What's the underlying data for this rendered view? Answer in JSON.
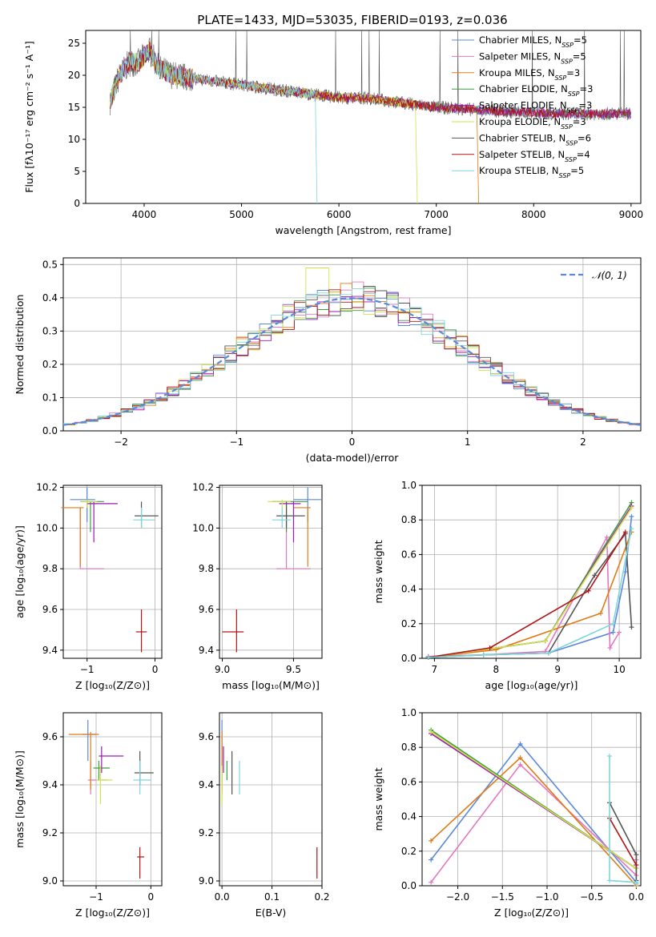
{
  "figure": {
    "title": "PLATE=1433, MJD=53035, FIBERID=0193, z=0.036"
  },
  "models": [
    {
      "name": "Chabrier MILES",
      "nssp": "5",
      "color": "#5b88d9"
    },
    {
      "name": "Salpeter MILES",
      "nssp": "5",
      "color": "#e377c2"
    },
    {
      "name": "Kroupa MILES",
      "nssp": "3",
      "color": "#e07b14"
    },
    {
      "name": "Chabrier ELODIE",
      "nssp": "3",
      "color": "#3e9e3e"
    },
    {
      "name": "Salpeter ELODIE",
      "nssp": "3",
      "color": "#9b1ab5"
    },
    {
      "name": "Kroupa ELODIE",
      "nssp": "3",
      "color": "#cfe34a"
    },
    {
      "name": "Chabrier STELIB",
      "nssp": "6",
      "color": "#555555"
    },
    {
      "name": "Salpeter STELIB",
      "nssp": "4",
      "color": "#b01414"
    },
    {
      "name": "Kroupa STELIB",
      "nssp": "5",
      "color": "#7fd6dc"
    }
  ],
  "chart_data": [
    {
      "id": "spectrum",
      "type": "line",
      "xlabel": "wavelength [Angstrom, rest frame]",
      "ylabel": "Flux [fλ10⁻¹⁷ erg cm⁻² s⁻¹ A⁻¹]",
      "xlim": [
        3400,
        9100
      ],
      "ylim": [
        0,
        27
      ],
      "xticks": [
        "4000",
        "5000",
        "6000",
        "7000",
        "8000",
        "9000"
      ],
      "yticks": [
        "0",
        "5",
        "10",
        "15",
        "20",
        "25"
      ],
      "x": [
        3650,
        3750,
        3850,
        3950,
        4050,
        4150,
        4300,
        4500,
        4750,
        5000,
        5250,
        5500,
        5750,
        6000,
        6250,
        6500,
        6750,
        7000,
        7250,
        7500,
        7750,
        8000,
        8250,
        8500,
        8800
      ],
      "y": [
        16,
        20,
        22,
        22,
        24,
        21,
        20,
        19.5,
        19,
        18.5,
        18,
        17.5,
        17,
        16.5,
        16.5,
        16,
        15.5,
        15,
        14.8,
        14.5,
        14.3,
        14.2,
        14,
        14,
        14
      ],
      "model_range": [
        [
          3650,
          9000
        ],
        [
          3650,
          9000
        ],
        [
          3650,
          7420
        ],
        [
          3650,
          9000
        ],
        [
          3650,
          9000
        ],
        [
          3650,
          6790
        ],
        [
          3650,
          9000
        ],
        [
          3650,
          9000
        ],
        [
          3650,
          5760
        ]
      ],
      "legend": "upper right"
    },
    {
      "id": "residuals",
      "type": "line",
      "xlabel": "(data-model)/error",
      "ylabel": "Normed distribution",
      "xlim": [
        -2.5,
        2.5
      ],
      "ylim": [
        0,
        0.52
      ],
      "xticks": [
        "−2",
        "−1",
        "0",
        "1",
        "2"
      ],
      "yticks": [
        "0.0",
        "0.1",
        "0.2",
        "0.3",
        "0.4",
        "0.5"
      ],
      "reference": "𝒩(0, 1)",
      "bin_width": 0.1,
      "legend": "upper right"
    },
    {
      "id": "age-vs-Z",
      "type": "scatter",
      "xlabel": "Z [log₁₀(Z/Z⊙)]",
      "ylabel": "age  [log₁₀(age/yr)]",
      "xlim": [
        -1.35,
        0.1
      ],
      "ylim": [
        9.36,
        10.21
      ],
      "xticks": [
        "−1",
        "0"
      ],
      "yticks": [
        "9.4",
        "9.6",
        "9.8",
        "10.0",
        "10.2"
      ],
      "points": [
        {
          "x": -1.0,
          "y": 10.14,
          "xe": [
            -1.25,
            -0.88
          ],
          "ye": [
            10.03,
            10.2
          ]
        },
        {
          "x": -1.1,
          "y": 9.8,
          "xe": [
            -1.1,
            -0.75
          ],
          "ye": [
            9.8,
            10.1
          ]
        },
        {
          "x": -1.1,
          "y": 10.1,
          "xe": [
            -1.38,
            -1.05
          ],
          "ye": [
            9.81,
            10.1
          ]
        },
        {
          "x": -0.95,
          "y": 10.13,
          "xe": [
            -1.1,
            -0.75
          ],
          "ye": [
            9.98,
            10.13
          ]
        },
        {
          "x": -0.9,
          "y": 10.12,
          "xe": [
            -1.0,
            -0.55
          ],
          "ye": [
            9.93,
            10.13
          ]
        },
        {
          "x": -1.0,
          "y": 10.13,
          "xe": [
            -1.1,
            -0.85
          ],
          "ye": [
            10.1,
            10.14
          ]
        },
        {
          "x": -0.2,
          "y": 10.06,
          "xe": [
            -0.3,
            0.05
          ],
          "ye": [
            10.0,
            10.13
          ]
        },
        {
          "x": -0.2,
          "y": 9.49,
          "xe": [
            -0.28,
            -0.12
          ],
          "ye": [
            9.39,
            9.6
          ]
        },
        {
          "x": -0.2,
          "y": 10.04,
          "xe": [
            -0.32,
            0.0
          ],
          "ye": [
            10.0,
            10.1
          ]
        }
      ]
    },
    {
      "id": "age-vs-mass",
      "type": "scatter",
      "xlabel": "mass [log₁₀(M/M⊙)]",
      "ylabel": "",
      "xlim": [
        8.98,
        9.7
      ],
      "ylim": [
        9.36,
        10.21
      ],
      "xticks": [
        "9.0",
        "9.5"
      ],
      "yticks": [
        "9.4",
        "9.6",
        "9.8",
        "10.0",
        "10.2"
      ],
      "points": [
        {
          "x": 9.6,
          "y": 10.14,
          "xe": [
            9.5,
            9.7
          ],
          "ye": [
            10.03,
            10.2
          ]
        },
        {
          "x": 9.45,
          "y": 9.8,
          "xe": [
            9.38,
            9.62
          ],
          "ye": [
            9.8,
            10.1
          ]
        },
        {
          "x": 9.6,
          "y": 10.1,
          "xe": [
            9.5,
            9.62
          ],
          "ye": [
            9.81,
            10.1
          ]
        },
        {
          "x": 9.45,
          "y": 10.13,
          "xe": [
            9.35,
            9.6
          ],
          "ye": [
            9.98,
            10.13
          ]
        },
        {
          "x": 9.5,
          "y": 10.12,
          "xe": [
            9.4,
            9.55
          ],
          "ye": [
            9.93,
            10.13
          ]
        },
        {
          "x": 9.42,
          "y": 10.13,
          "xe": [
            9.32,
            9.48
          ],
          "ye": [
            10.1,
            10.14
          ]
        },
        {
          "x": 9.45,
          "y": 10.06,
          "xe": [
            9.38,
            9.58
          ],
          "ye": [
            10.0,
            10.13
          ]
        },
        {
          "x": 9.1,
          "y": 9.49,
          "xe": [
            9.0,
            9.15
          ],
          "ye": [
            9.39,
            9.6
          ]
        },
        {
          "x": 9.42,
          "y": 10.04,
          "xe": [
            9.35,
            9.48
          ],
          "ye": [
            10.0,
            10.1
          ]
        }
      ]
    },
    {
      "id": "massweight-vs-age",
      "type": "line",
      "xlabel": "age  [log₁₀(age/yr)]",
      "ylabel": "mass weight",
      "xlim": [
        6.8,
        10.35
      ],
      "ylim": [
        0,
        1
      ],
      "xticks": [
        "7",
        "8",
        "9",
        "10"
      ],
      "yticks": [
        "0.0",
        "0.2",
        "0.4",
        "0.6",
        "0.8",
        "1.0"
      ],
      "series": [
        {
          "x": [
            6.9,
            7.8,
            8.85,
            9.9,
            10.1,
            10.2
          ],
          "y": [
            0.01,
            0.02,
            0.03,
            0.15,
            0.5,
            0.82
          ]
        },
        {
          "x": [
            6.9,
            7.8,
            8.8,
            9.8,
            9.85,
            10.0
          ],
          "y": [
            0.01,
            0.02,
            0.04,
            0.7,
            0.06,
            0.15
          ]
        },
        {
          "x": [
            6.9,
            8.0,
            9.7,
            10.2
          ],
          "y": [
            0.005,
            0.05,
            0.26,
            0.73
          ]
        },
        {
          "x": [
            6.9,
            8.8,
            10.2
          ],
          "y": [
            0.005,
            0.1,
            0.9
          ]
        },
        {
          "x": [
            6.9,
            8.8,
            10.2
          ],
          "y": [
            0.005,
            0.1,
            0.88
          ]
        },
        {
          "x": [
            6.9,
            8.8,
            10.2
          ],
          "y": [
            0.005,
            0.1,
            0.87
          ]
        },
        {
          "x": [
            6.9,
            7.8,
            8.85,
            9.6,
            10.1,
            10.2
          ],
          "y": [
            0.005,
            0.02,
            0.03,
            0.48,
            0.72,
            0.18
          ]
        },
        {
          "x": [
            6.9,
            7.9,
            9.5,
            10.1
          ],
          "y": [
            0.005,
            0.06,
            0.39,
            0.73
          ]
        },
        {
          "x": [
            6.9,
            7.8,
            8.85,
            9.9,
            10.2
          ],
          "y": [
            0.005,
            0.02,
            0.03,
            0.2,
            0.75
          ]
        }
      ]
    },
    {
      "id": "mass-vs-Z",
      "type": "scatter",
      "xlabel": "Z [log₁₀(Z/Z⊙)]",
      "ylabel": "mass [log₁₀(M/M⊙)]",
      "xlim": [
        -1.6,
        0.2
      ],
      "ylim": [
        8.98,
        9.7
      ],
      "xticks": [
        "−1",
        "0"
      ],
      "yticks": [
        "9.0",
        "9.2",
        "9.4",
        "9.6"
      ],
      "points": [
        {
          "x": -1.15,
          "y": 9.61,
          "xe": [
            -1.25,
            -1.0
          ],
          "ye": [
            9.5,
            9.67
          ]
        },
        {
          "x": -1.1,
          "y": 9.42,
          "xe": [
            -1.15,
            -0.8
          ],
          "ye": [
            9.36,
            9.5
          ]
        },
        {
          "x": -1.1,
          "y": 9.61,
          "xe": [
            -1.5,
            -0.95
          ],
          "ye": [
            9.38,
            9.62
          ]
        },
        {
          "x": -0.95,
          "y": 9.47,
          "xe": [
            -1.05,
            -0.75
          ],
          "ye": [
            9.42,
            9.5
          ]
        },
        {
          "x": -0.9,
          "y": 9.52,
          "xe": [
            -0.95,
            -0.5
          ],
          "ye": [
            9.45,
            9.56
          ]
        },
        {
          "x": -0.92,
          "y": 9.42,
          "xe": [
            -1.0,
            -0.7
          ],
          "ye": [
            9.32,
            9.48
          ]
        },
        {
          "x": -0.2,
          "y": 9.45,
          "xe": [
            -0.3,
            0.05
          ],
          "ye": [
            9.4,
            9.54
          ]
        },
        {
          "x": -0.2,
          "y": 9.1,
          "xe": [
            -0.25,
            -0.12
          ],
          "ye": [
            9.01,
            9.14
          ]
        },
        {
          "x": -0.2,
          "y": 9.42,
          "xe": [
            -0.32,
            0.0
          ],
          "ye": [
            9.36,
            9.5
          ]
        }
      ]
    },
    {
      "id": "mass-vs-EBV",
      "type": "scatter",
      "xlabel": "E(B-V)",
      "ylabel": "",
      "xlim": [
        -0.005,
        0.2
      ],
      "ylim": [
        8.98,
        9.7
      ],
      "xticks": [
        "0.0",
        "0.1",
        "0.2"
      ],
      "yticks": [
        "9.0",
        "9.2",
        "9.4",
        "9.6"
      ],
      "points": [
        {
          "x": 0.0,
          "y": 9.61,
          "xe": [
            0.0,
            0.0
          ],
          "ye": [
            9.5,
            9.67
          ]
        },
        {
          "x": 0.0,
          "y": 9.42,
          "xe": [
            0.0,
            0.0
          ],
          "ye": [
            9.36,
            9.5
          ]
        },
        {
          "x": 0.0,
          "y": 9.61,
          "xe": [
            0.0,
            0.0
          ],
          "ye": [
            9.38,
            9.62
          ]
        },
        {
          "x": 0.01,
          "y": 9.47,
          "xe": [
            0.01,
            0.01
          ],
          "ye": [
            9.42,
            9.5
          ]
        },
        {
          "x": 0.003,
          "y": 9.52,
          "xe": [
            0.003,
            0.003
          ],
          "ye": [
            9.45,
            9.56
          ]
        },
        {
          "x": 0.0,
          "y": 9.42,
          "xe": [
            0.0,
            0.0
          ],
          "ye": [
            9.32,
            9.48
          ]
        },
        {
          "x": 0.02,
          "y": 9.45,
          "xe": [
            0.02,
            0.02
          ],
          "ye": [
            9.36,
            9.54
          ]
        },
        {
          "x": 0.19,
          "y": 9.1,
          "xe": [
            0.19,
            0.19
          ],
          "ye": [
            9.01,
            9.14
          ]
        },
        {
          "x": 0.035,
          "y": 9.42,
          "xe": [
            0.035,
            0.035
          ],
          "ye": [
            9.36,
            9.5
          ]
        }
      ]
    },
    {
      "id": "massweight-vs-Z",
      "type": "line",
      "xlabel": "Z [log₁₀(Z/Z⊙)]",
      "ylabel": "mass weight",
      "xlim": [
        -2.4,
        0.05
      ],
      "ylim": [
        0,
        1
      ],
      "xticks": [
        "−2.0",
        "−1.5",
        "−1.0",
        "−0.5",
        "0.0"
      ],
      "yticks": [
        "0.0",
        "0.2",
        "0.4",
        "0.6",
        "0.8",
        "1.0"
      ],
      "series": [
        {
          "x": [
            -2.3,
            -1.3,
            0.0,
            0.0
          ],
          "y": [
            0.15,
            0.82,
            0.02,
            0.01
          ]
        },
        {
          "x": [
            -2.3,
            -1.3,
            0.0,
            0.0
          ],
          "y": [
            0.02,
            0.7,
            0.06,
            0.15
          ]
        },
        {
          "x": [
            -2.3,
            -1.3,
            0.0
          ],
          "y": [
            0.26,
            0.74,
            0.0
          ]
        },
        {
          "x": [
            -2.3,
            0.0
          ],
          "y": [
            0.9,
            0.1
          ]
        },
        {
          "x": [
            -2.3,
            0.0
          ],
          "y": [
            0.88,
            0.1
          ]
        },
        {
          "x": [
            -2.3,
            0.0
          ],
          "y": [
            0.89,
            0.1
          ]
        },
        {
          "x": [
            -0.3,
            0.0,
            0.0
          ],
          "y": [
            0.48,
            0.18,
            0.03
          ]
        },
        {
          "x": [
            -0.3,
            0.0
          ],
          "y": [
            0.39,
            0.12
          ]
        },
        {
          "x": [
            -0.3,
            -0.3,
            0.0,
            0.0
          ],
          "y": [
            0.75,
            0.03,
            0.02,
            0.01
          ]
        }
      ]
    }
  ]
}
